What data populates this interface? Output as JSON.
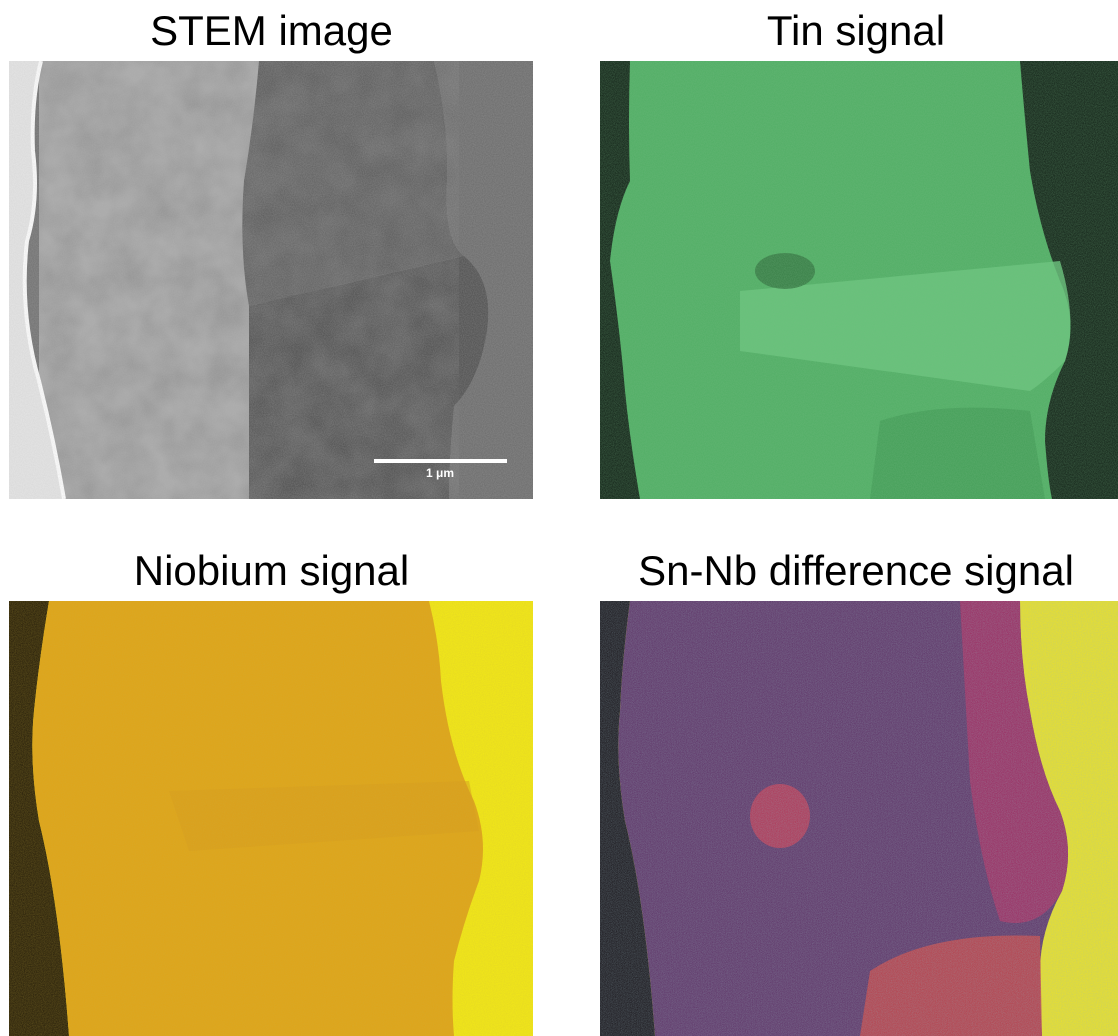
{
  "panels": [
    {
      "id": "stem",
      "title": "STEM image",
      "scale_bar_label": "1 μm"
    },
    {
      "id": "tin",
      "title": "Tin signal"
    },
    {
      "id": "niobium",
      "title": "Niobium signal"
    },
    {
      "id": "difference",
      "title": "Sn-Nb difference signal"
    }
  ],
  "colors": {
    "stem_base": "#6e6e6e",
    "tin_base": "#5fbf73",
    "niobium_base": "#e3a818",
    "niobium_bright": "#f7ef12",
    "difference_base": "#6a2a6a",
    "difference_bright": "#f4e81a"
  }
}
